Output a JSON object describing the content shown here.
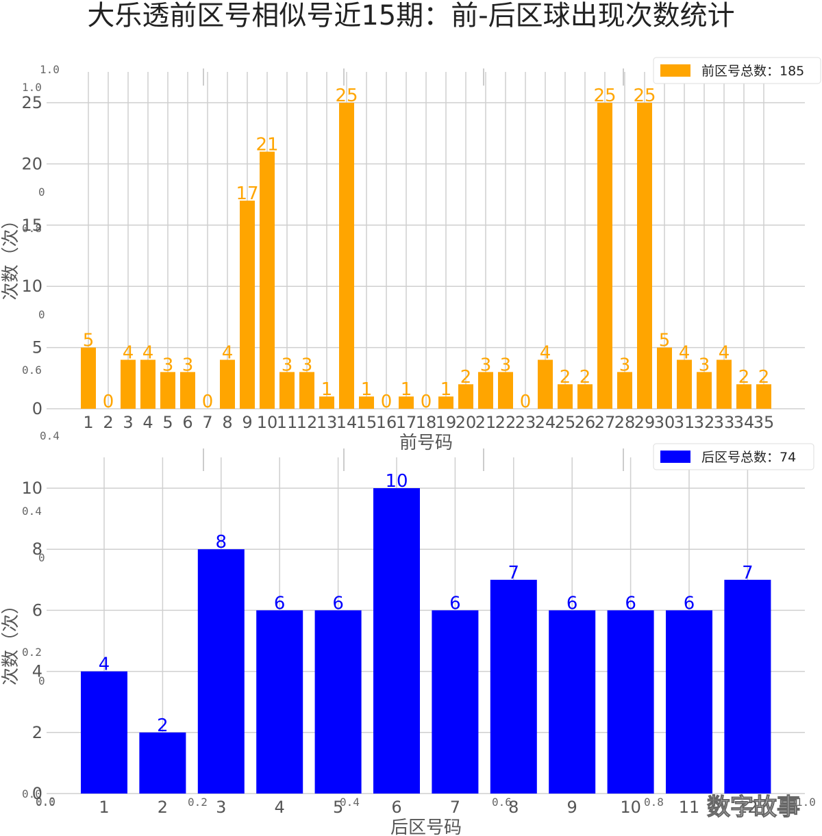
{
  "title": "大乐透前区号相似号近15期：前-后区球出现次数统计",
  "watermark": "数字故事",
  "ghost_ticks": {
    "left": [
      "1.0",
      "1.0",
      "0",
      "0.8",
      "0",
      "0.6",
      "0.4",
      "0.4",
      "0",
      "0.2",
      "0",
      "0.0",
      "0.0"
    ],
    "bottom": [
      "0.0",
      "0.2",
      "0.4",
      "0.6",
      "0.8",
      "1.0"
    ]
  },
  "chart_data": [
    {
      "type": "bar",
      "color": "#ffa500",
      "categories": [
        "1",
        "2",
        "3",
        "4",
        "5",
        "6",
        "7",
        "8",
        "9",
        "10",
        "11",
        "12",
        "13",
        "14",
        "15",
        "16",
        "17",
        "18",
        "19",
        "20",
        "21",
        "22",
        "23",
        "24",
        "25",
        "26",
        "27",
        "28",
        "29",
        "30",
        "31",
        "32",
        "33",
        "34",
        "35"
      ],
      "values": [
        5,
        0,
        4,
        4,
        3,
        3,
        0,
        4,
        17,
        21,
        3,
        3,
        1,
        25,
        1,
        0,
        1,
        0,
        1,
        2,
        3,
        3,
        0,
        4,
        2,
        2,
        25,
        3,
        25,
        5,
        4,
        3,
        4,
        2,
        2
      ],
      "xlabel": "前号码",
      "ylabel": "次数（次）",
      "yticks": [
        0,
        5,
        10,
        15,
        20,
        25
      ],
      "ylim": [
        0,
        25
      ],
      "legend": {
        "label": "前区号总数：185",
        "position": "top-right"
      },
      "grid": true
    },
    {
      "type": "bar",
      "color": "#0000ff",
      "categories": [
        "1",
        "2",
        "3",
        "4",
        "5",
        "6",
        "7",
        "8",
        "9",
        "10",
        "11",
        "12"
      ],
      "values": [
        4,
        2,
        8,
        6,
        6,
        10,
        6,
        7,
        6,
        6,
        6,
        7
      ],
      "xlabel": "后区号码",
      "ylabel": "次数（次）",
      "yticks": [
        0,
        2,
        4,
        6,
        8,
        10
      ],
      "ylim": [
        0,
        10
      ],
      "legend": {
        "label": "后区号总数：74",
        "position": "top-right"
      },
      "grid": true
    }
  ]
}
